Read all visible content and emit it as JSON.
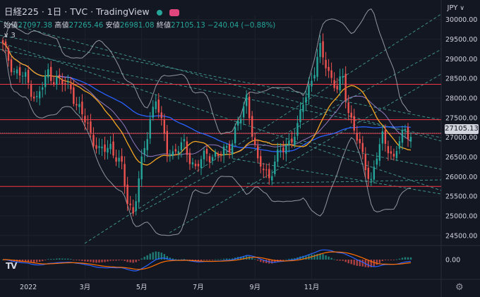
{
  "header": {
    "symbol": "日経225",
    "interval": "1日",
    "exchange": "TVC",
    "brand": "TradingView"
  },
  "ohlc": {
    "open_label": "始値",
    "open_value": "27097.38",
    "high_label": "高値",
    "high_value": "27265.46",
    "low_label": "安値",
    "low_value": "26981.08",
    "close_label": "終値",
    "close_value": "27105.13",
    "change": "−240.04 (−0.88%)"
  },
  "indicators_toggle": "3",
  "currency": "JPY",
  "last_price_tag": "27105.13",
  "colors": {
    "background": "#131722",
    "up": "#26a69a",
    "down": "#ef5350",
    "price_line": "#d1d4dc",
    "sma_short": "#f5a623",
    "sma_long": "#2962ff",
    "bollinger": "#b2b5be",
    "support_line": "#f23645",
    "trend_dashed": "#4db6ac",
    "macd": "#2962ff",
    "signal": "#ff6d00"
  },
  "chart_data": {
    "type": "candlestick",
    "y_ticks": [
      "30000.00",
      "29500.00",
      "29000.00",
      "28500.00",
      "28000.00",
      "27500.00",
      "27000.00",
      "26500.00",
      "26000.00",
      "25500.00",
      "25000.00",
      "24500.00"
    ],
    "ylim": [
      24300,
      30100
    ],
    "x_ticks": [
      "2022",
      "3月",
      "5月",
      "7月",
      "9月",
      "11月"
    ],
    "horizontal_levels": [
      28350,
      27450,
      27100,
      25750
    ],
    "last_price": 27105.13,
    "macd_zero_label": "0.00",
    "keypoints": [
      {
        "t": 0,
        "c": 29300
      },
      {
        "t": 4,
        "c": 28700
      },
      {
        "t": 8,
        "c": 28500
      },
      {
        "t": 12,
        "c": 27950
      },
      {
        "t": 16,
        "c": 28650
      },
      {
        "t": 20,
        "c": 28400
      },
      {
        "t": 24,
        "c": 28300
      },
      {
        "t": 26,
        "c": 27800
      },
      {
        "t": 30,
        "c": 27300
      },
      {
        "t": 34,
        "c": 26600
      },
      {
        "t": 38,
        "c": 26800
      },
      {
        "t": 42,
        "c": 26200
      },
      {
        "t": 44,
        "c": 25400
      },
      {
        "t": 46,
        "c": 25100
      },
      {
        "t": 48,
        "c": 25900
      },
      {
        "t": 50,
        "c": 26700
      },
      {
        "t": 52,
        "c": 27500
      },
      {
        "t": 54,
        "c": 28000
      },
      {
        "t": 56,
        "c": 27300
      },
      {
        "t": 58,
        "c": 26700
      },
      {
        "t": 60,
        "c": 26600
      },
      {
        "t": 64,
        "c": 26800
      },
      {
        "t": 68,
        "c": 26200
      },
      {
        "t": 72,
        "c": 26600
      },
      {
        "t": 76,
        "c": 26500
      },
      {
        "t": 80,
        "c": 26800
      },
      {
        "t": 84,
        "c": 27500
      },
      {
        "t": 86,
        "c": 28000
      },
      {
        "t": 88,
        "c": 27200
      },
      {
        "t": 90,
        "c": 26300
      },
      {
        "t": 92,
        "c": 26200
      },
      {
        "t": 94,
        "c": 26000
      },
      {
        "t": 96,
        "c": 26400
      },
      {
        "t": 100,
        "c": 26800
      },
      {
        "t": 104,
        "c": 27200
      },
      {
        "t": 106,
        "c": 27900
      },
      {
        "t": 108,
        "c": 28300
      },
      {
        "t": 110,
        "c": 28700
      },
      {
        "t": 112,
        "c": 29200
      },
      {
        "t": 114,
        "c": 28900
      },
      {
        "t": 116,
        "c": 28500
      },
      {
        "t": 118,
        "c": 28200
      },
      {
        "t": 120,
        "c": 28500
      },
      {
        "t": 122,
        "c": 27700
      },
      {
        "t": 124,
        "c": 27200
      },
      {
        "t": 126,
        "c": 26700
      },
      {
        "t": 128,
        "c": 26300
      },
      {
        "t": 130,
        "c": 25900
      },
      {
        "t": 132,
        "c": 26500
      },
      {
        "t": 134,
        "c": 27000
      },
      {
        "t": 136,
        "c": 26800
      },
      {
        "t": 138,
        "c": 26400
      },
      {
        "t": 140,
        "c": 26900
      },
      {
        "t": 142,
        "c": 27200
      },
      {
        "t": 144,
        "c": 27105
      }
    ],
    "bar_count": 145
  }
}
